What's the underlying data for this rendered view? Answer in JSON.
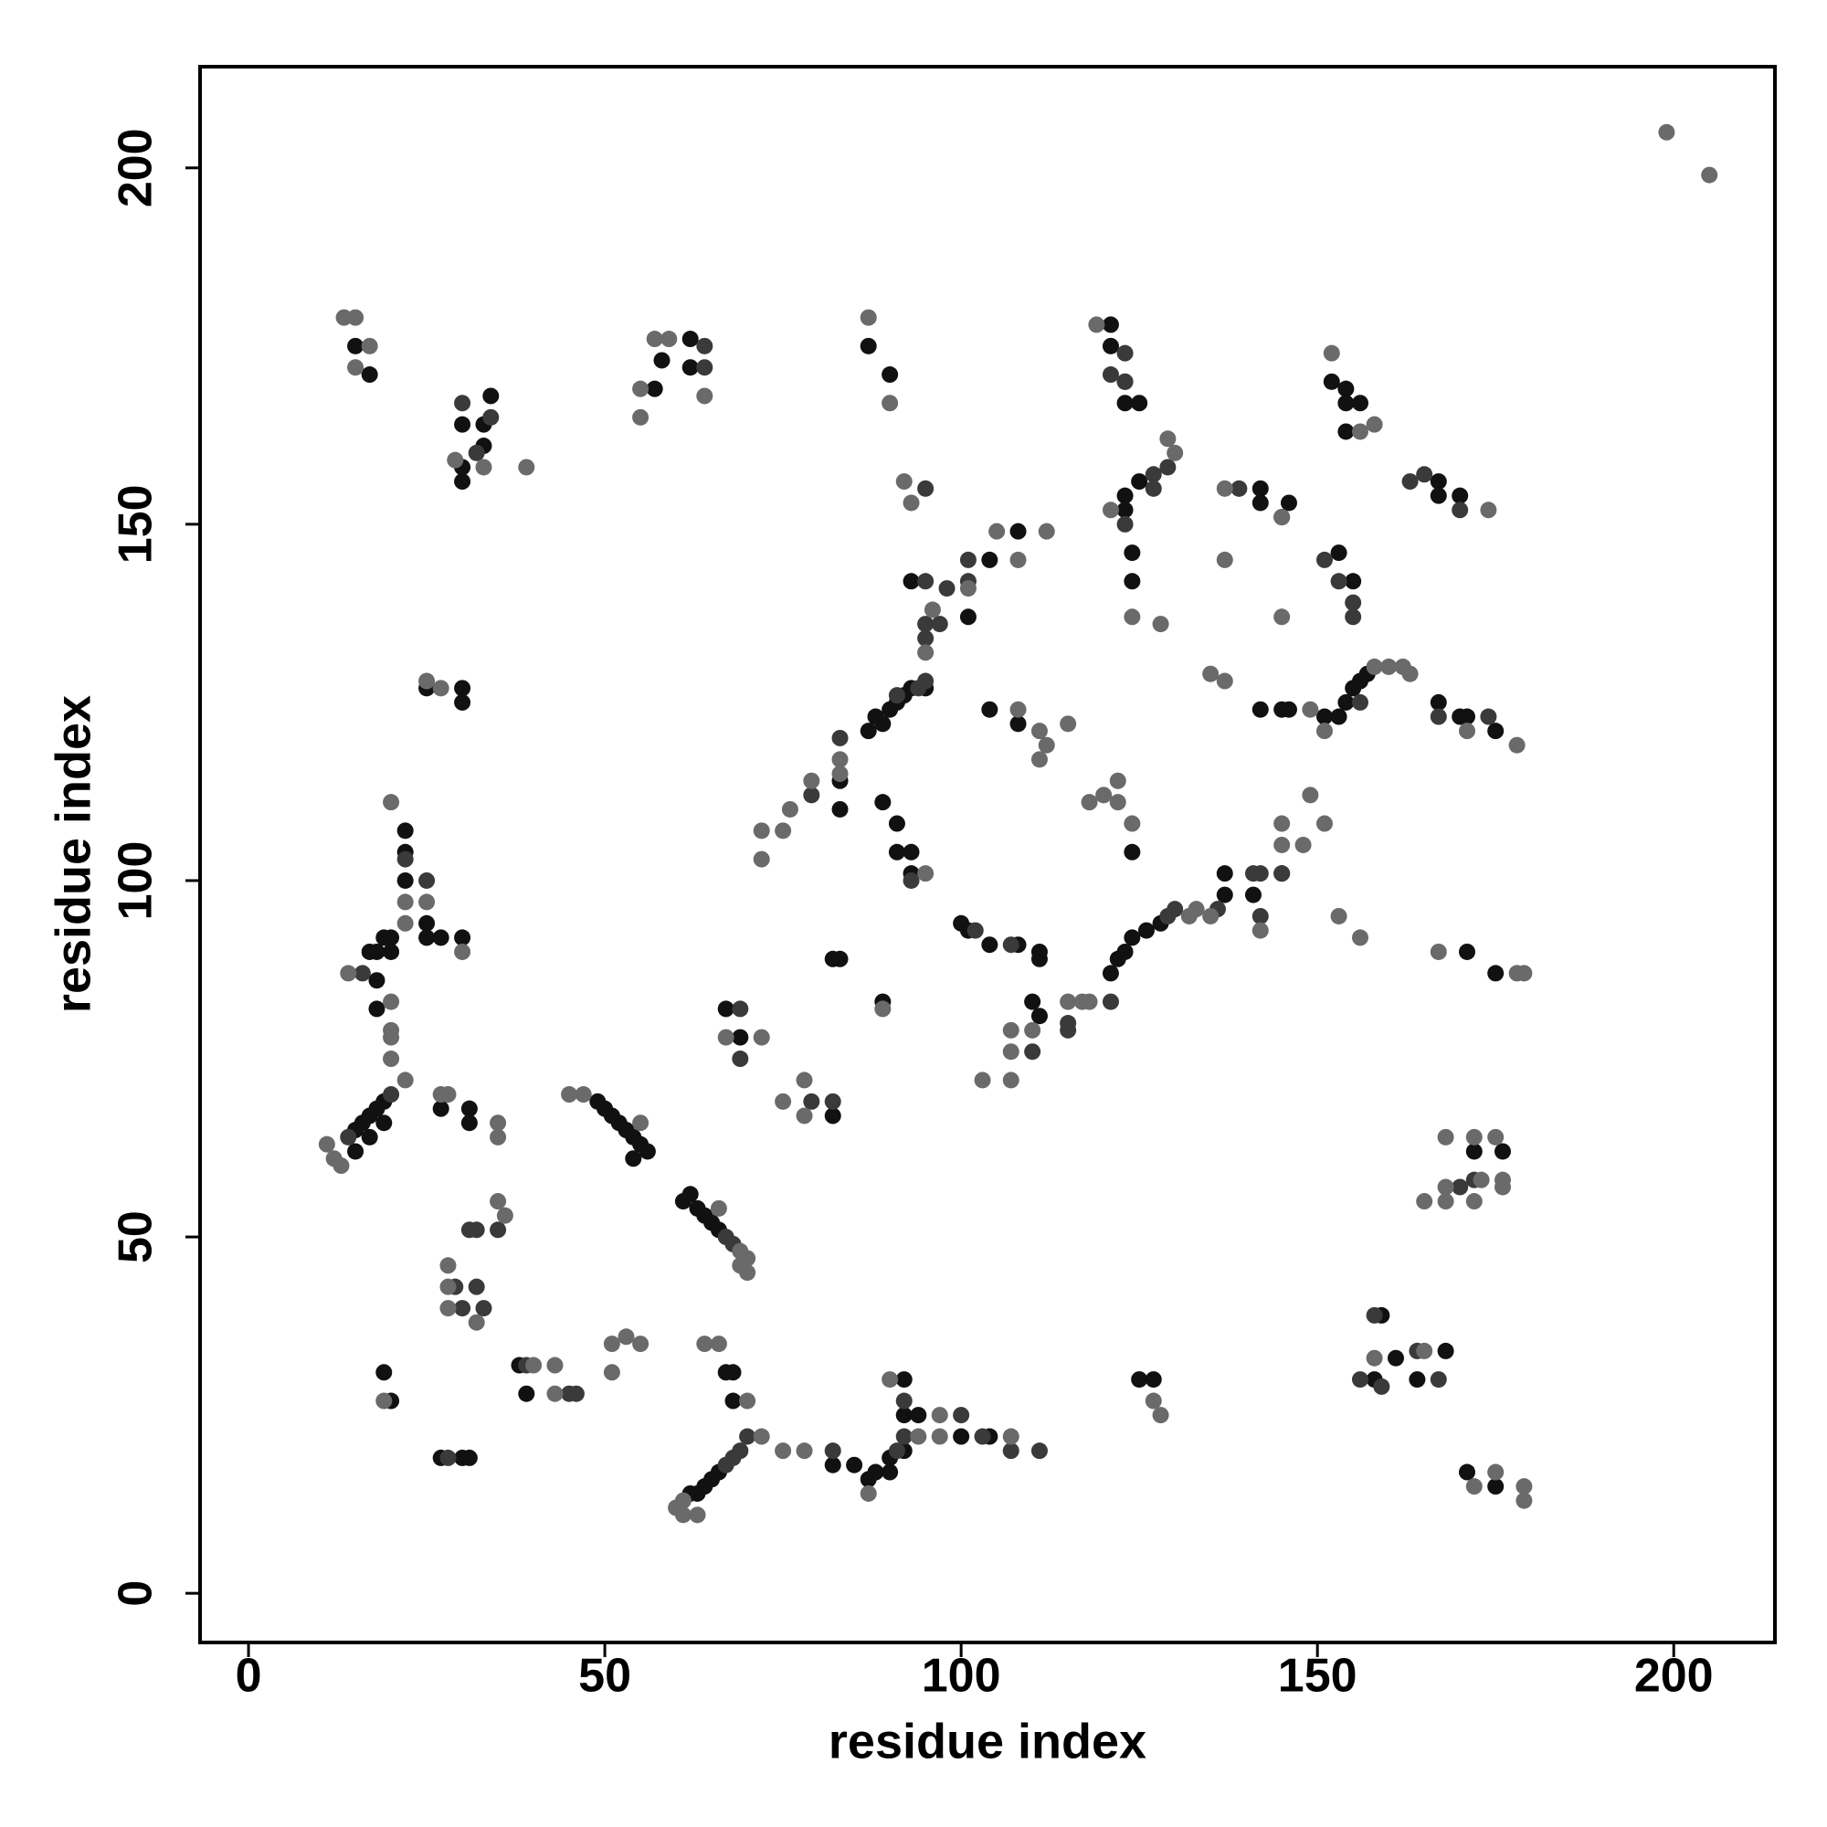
{
  "chart_data": {
    "type": "scatter",
    "xlabel": "residue index",
    "ylabel": "residue index",
    "xlim": [
      -6.8,
      214.2
    ],
    "ylim": [
      -6.9,
      214.2
    ],
    "xticks": [
      0,
      50,
      100,
      150,
      200
    ],
    "yticks": [
      0,
      50,
      100,
      150,
      200
    ],
    "grid": false,
    "series": [
      {
        "color": "#111111",
        "x": [
          15,
          17,
          30,
          33,
          30,
          30,
          34,
          33,
          57,
          58,
          62,
          62,
          87,
          90,
          121,
          121,
          123,
          123,
          125,
          123,
          125,
          123,
          124,
          124,
          154,
          154,
          156,
          154,
          152,
          167,
          167,
          170,
          142,
          146,
          153,
          155,
          108,
          104,
          101,
          93,
          95,
          93,
          92,
          91,
          90,
          89,
          88,
          87,
          83,
          83,
          104,
          108,
          89,
          91,
          91,
          93,
          93,
          100,
          101,
          104,
          108,
          111,
          111,
          110,
          121,
          122,
          123,
          124,
          126,
          128,
          137,
          137,
          145,
          141,
          142,
          145,
          146,
          151,
          153,
          154,
          155,
          156,
          157,
          167,
          170,
          171,
          175,
          171,
          175,
          172,
          176,
          158,
          159,
          161,
          164,
          168,
          171,
          175,
          125,
          127,
          63,
          64,
          65,
          66,
          62,
          87,
          90,
          88,
          90,
          92,
          92,
          94,
          92,
          82,
          85,
          100,
          104,
          67,
          68,
          68,
          38,
          39,
          27,
          30,
          31,
          19,
          20,
          61,
          62,
          63,
          64,
          65,
          66,
          49,
          50,
          51,
          52,
          53,
          54,
          55,
          56,
          54,
          15,
          16,
          17,
          18,
          19,
          19,
          17,
          15,
          17,
          18,
          19,
          20,
          20,
          18,
          18,
          22,
          22,
          25,
          25,
          27,
          30,
          22,
          27,
          31,
          31,
          25,
          30,
          30,
          67,
          69,
          82,
          82,
          83,
          89,
          145,
          142,
          124,
          111
        ],
        "y": [
          175,
          171,
          164,
          164,
          158,
          156,
          168,
          161,
          169,
          173,
          176,
          172,
          175,
          171,
          178,
          175,
          170,
          167,
          167,
          154,
          156,
          152,
          146,
          142,
          169,
          167,
          167,
          163,
          170,
          156,
          154,
          154,
          155,
          153,
          146,
          142,
          149,
          145,
          137,
          142,
          127,
          127,
          126,
          125,
          124,
          122,
          123,
          121,
          114,
          110,
          124,
          122,
          111,
          108,
          104,
          104,
          101,
          94,
          93,
          91,
          91,
          89,
          90,
          83,
          87,
          89,
          90,
          92,
          93,
          94,
          98,
          101,
          101,
          98,
          124,
          124,
          124,
          123,
          123,
          125,
          127,
          128,
          129,
          125,
          123,
          123,
          121,
          90,
          87,
          62,
          62,
          30,
          39,
          33,
          30,
          34,
          17,
          15,
          30,
          30,
          14,
          15,
          16,
          17,
          14,
          16,
          17,
          17,
          19,
          20,
          25,
          25,
          30,
          18,
          18,
          22,
          22,
          31,
          31,
          27,
          32,
          28,
          19,
          19,
          19,
          31,
          27,
          55,
          56,
          54,
          53,
          52,
          51,
          69,
          68,
          67,
          66,
          65,
          64,
          63,
          62,
          61,
          65,
          66,
          67,
          68,
          69,
          66,
          64,
          62,
          90,
          90,
          92,
          92,
          90,
          86,
          82,
          100,
          104,
          94,
          92,
          92,
          92,
          107,
          68,
          68,
          66,
          127,
          127,
          125,
          82,
          78,
          67,
          89,
          89,
          83,
          151,
          153,
          104,
          81
        ]
      },
      {
        "color": "#3a3a3a",
        "x": [
          123,
          121,
          127,
          129,
          127,
          123,
          163,
          165,
          170,
          139,
          151,
          153,
          155,
          155,
          95,
          101,
          101,
          98,
          95,
          95,
          97,
          95,
          95,
          91,
          94,
          79,
          83,
          93,
          102,
          107,
          115,
          115,
          121,
          110,
          129,
          130,
          136,
          141,
          142,
          145,
          142,
          156,
          167,
          174,
          170,
          172,
          164,
          156,
          159,
          167,
          158,
          67,
          68,
          69,
          70,
          82,
          92,
          92,
          100,
          103,
          107,
          111,
          91,
          46,
          45,
          39,
          28,
          32,
          29,
          30,
          33,
          31,
          32,
          35,
          67,
          68,
          14,
          20,
          22,
          25,
          16,
          30,
          69,
          69,
          79,
          82,
          64,
          64,
          123,
          34,
          32
        ],
        "y": [
          174,
          171,
          157,
          158,
          155,
          150,
          156,
          157,
          152,
          155,
          145,
          142,
          139,
          137,
          155,
          145,
          142,
          141,
          142,
          136,
          136,
          134,
          128,
          126,
          127,
          112,
          120,
          100,
          93,
          91,
          80,
          79,
          83,
          76,
          95,
          96,
          96,
          101,
          101,
          101,
          95,
          125,
          123,
          123,
          57,
          58,
          34,
          30,
          29,
          30,
          39,
          18,
          19,
          20,
          22,
          20,
          27,
          22,
          25,
          22,
          20,
          20,
          20,
          28,
          28,
          32,
          19,
          43,
          43,
          40,
          40,
          51,
          51,
          51,
          50,
          49,
          64,
          70,
          103,
          100,
          87,
          167,
          82,
          75,
          69,
          69,
          172,
          175,
          170,
          165,
          160
        ]
      },
      {
        "color": "#6a6a6a",
        "x": [
          199,
          205,
          13.4,
          15,
          15,
          17,
          29,
          39,
          33,
          55,
          55,
          57,
          59,
          64,
          87,
          90,
          119,
          130,
          129,
          121,
          152,
          156,
          158,
          174,
          137,
          137,
          145,
          145,
          128,
          124,
          92,
          93,
          112,
          105,
          108,
          101,
          95,
          96,
          83,
          83,
          79,
          76,
          75,
          72,
          72,
          108,
          111,
          112,
          111,
          115,
          118,
          120,
          122,
          122,
          124,
          95,
          115,
          117,
          118,
          110,
          107,
          107,
          103,
          107,
          132,
          133,
          135,
          145,
          145,
          148,
          149,
          151,
          135,
          137,
          153,
          156,
          167,
          178,
          179,
          149,
          151,
          158,
          160,
          162,
          163,
          171,
          178,
          168,
          172,
          175,
          168,
          173,
          176,
          176,
          165,
          168,
          172,
          158,
          165,
          172,
          175,
          179,
          179,
          127,
          128,
          60,
          61,
          63,
          61,
          72,
          75,
          78,
          87,
          90,
          94,
          97,
          97,
          107,
          70,
          64,
          66,
          51,
          53,
          55,
          51,
          43,
          43,
          40,
          19,
          28,
          28,
          28,
          32,
          35,
          36,
          69,
          70,
          70,
          69,
          66,
          45,
          47,
          55,
          11,
          12,
          13,
          22,
          27,
          28,
          35,
          35,
          14,
          20,
          20,
          20,
          20,
          22,
          22,
          20,
          25,
          30,
          25,
          27,
          72,
          67,
          75,
          78,
          78,
          89,
          142
        ],
        "y": [
          205,
          199,
          179,
          179,
          172,
          175,
          159,
          158,
          158,
          165,
          169,
          176,
          176,
          168,
          179,
          167,
          178,
          160,
          162,
          152,
          174,
          163,
          164,
          152,
          155,
          145,
          137,
          151,
          136,
          137,
          156,
          153,
          149,
          149,
          145,
          141,
          132,
          138,
          117,
          115,
          114,
          110,
          107,
          107,
          103,
          124,
          121,
          119,
          117,
          122,
          111,
          112,
          114,
          111,
          108,
          101,
          83,
          83,
          83,
          79,
          79,
          76,
          72,
          72,
          95,
          96,
          95,
          108,
          105,
          105,
          112,
          108,
          129,
          128,
          95,
          92,
          90,
          87,
          87,
          124,
          121,
          130,
          130,
          130,
          129,
          121,
          119,
          64,
          64,
          64,
          57,
          58,
          58,
          57,
          55,
          55,
          55,
          33,
          34,
          15,
          17,
          15,
          13,
          27,
          25,
          12,
          11,
          11,
          13,
          22,
          20,
          20,
          14,
          30,
          22,
          22,
          25,
          22,
          27,
          35,
          35,
          35,
          36,
          35,
          31,
          32,
          28,
          32,
          27,
          46,
          43,
          40,
          38,
          55,
          53,
          46,
          45,
          47,
          48,
          54,
          70,
          70,
          66,
          63,
          61,
          60,
          72,
          70,
          70,
          66,
          64,
          87,
          83,
          79,
          78,
          75,
          94,
          97,
          111,
          97,
          90,
          128,
          127,
          78,
          78,
          69,
          72,
          67,
          82,
          93
        ]
      }
    ]
  }
}
